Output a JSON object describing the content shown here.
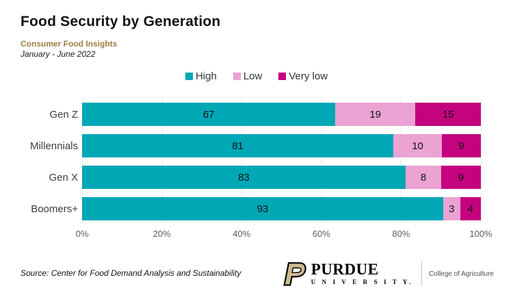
{
  "title": "Food Security by Generation",
  "subtitle": "Consumer Food Insights",
  "period": "January - June 2022",
  "legend": [
    {
      "label": "High",
      "color": "#00a7b5"
    },
    {
      "label": "Low",
      "color": "#eba3d3"
    },
    {
      "label": "Very low",
      "color": "#c4037f"
    }
  ],
  "chart_data": {
    "type": "bar",
    "orientation": "horizontal",
    "stacked": true,
    "title": "Food Security by Generation",
    "categories": [
      "Gen Z",
      "Millennials",
      "Gen X",
      "Boomers+"
    ],
    "series": [
      {
        "name": "High",
        "color": "#00a7b5",
        "values": [
          67,
          81,
          83,
          93
        ]
      },
      {
        "name": "Low",
        "color": "#eba3d3",
        "values": [
          19,
          10,
          8,
          3
        ]
      },
      {
        "name": "Very low",
        "color": "#c4037f",
        "values": [
          15,
          9,
          9,
          4
        ]
      }
    ],
    "x_ticks": [
      "0%",
      "20%",
      "40%",
      "60%",
      "80%",
      "100%"
    ],
    "xlim": [
      0,
      100
    ],
    "xlabel": "",
    "ylabel": "",
    "grid": true,
    "gridline_color": "#e7e7e7",
    "legend_position": "top-center",
    "value_labels": true
  },
  "source": "Source:  Center for Food Demand Analysis and Sustainability",
  "footer_logo": {
    "p_icon": "purdue-motion-p",
    "p_color": "#cfb991",
    "wordmark": "PURDUE",
    "sub": "U N I V E R S I T Y.",
    "college": "College of Agriculture"
  }
}
